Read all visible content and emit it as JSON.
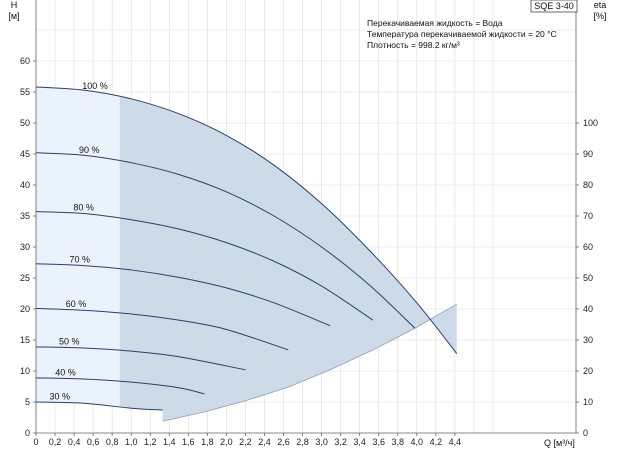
{
  "chart_data": {
    "type": "line",
    "model": "SQE 3-40",
    "info_lines": [
      "Перекачиваемая жидкость = Вода",
      "Температура перекачиваемой жидкости = 20 °C",
      "Плотность = 998.2 кг/м³"
    ],
    "y_left_title": [
      "H",
      "[м]"
    ],
    "y_right_title": [
      "eta",
      "[%]"
    ],
    "x_title": "Q [м³/ч]",
    "xlim": [
      0,
      4.8
    ],
    "ylim": [
      0,
      60
    ],
    "x_ticks": [
      "0",
      "0,2",
      "0,4",
      "0,6",
      "0,8",
      "1,0",
      "1,2",
      "1,4",
      "1,6",
      "1,8",
      "2,0",
      "2,2",
      "2,4",
      "2,6",
      "2,8",
      "3,0",
      "3,2",
      "3,4",
      "3,6",
      "3,8",
      "4,0",
      "4,2",
      "4,4"
    ],
    "y_left_ticks": [
      "0",
      "5",
      "10",
      "15",
      "20",
      "25",
      "30",
      "35",
      "40",
      "45",
      "50",
      "55",
      "60"
    ],
    "y_right_ticks": [
      "0",
      "10",
      "20",
      "30",
      "40",
      "50",
      "60",
      "70",
      "80",
      "90",
      "100"
    ],
    "eta_range": [
      0,
      100
    ],
    "light_region_x_end": 0.88,
    "series": [
      {
        "name": "100 %",
        "x": [
          0,
          0.5,
          1.0,
          1.5,
          2.0,
          2.5,
          3.0,
          3.5,
          4.0,
          4.42
        ],
        "y": [
          55.8,
          55.3,
          53.9,
          51.5,
          48.0,
          43.2,
          37.0,
          29.5,
          21.0,
          12.8
        ]
      },
      {
        "name": "90 %",
        "x": [
          0,
          0.5,
          1.0,
          1.5,
          2.0,
          2.5,
          3.0,
          3.5,
          3.98
        ],
        "y": [
          45.2,
          44.8,
          43.6,
          41.7,
          38.9,
          35.0,
          30.0,
          23.9,
          16.9
        ]
      },
      {
        "name": "80 %",
        "x": [
          0,
          0.5,
          1.0,
          1.5,
          2.0,
          2.5,
          3.0,
          3.54
        ],
        "y": [
          35.7,
          35.4,
          34.4,
          32.9,
          30.7,
          27.7,
          23.7,
          18.2
        ]
      },
      {
        "name": "70 %",
        "x": [
          0,
          0.5,
          1.0,
          1.5,
          2.0,
          2.5,
          3.09
        ],
        "y": [
          27.3,
          27.0,
          26.3,
          25.1,
          23.4,
          21.0,
          17.3
        ]
      },
      {
        "name": "60 %",
        "x": [
          0,
          0.5,
          1.0,
          1.5,
          2.0,
          2.65
        ],
        "y": [
          20.1,
          19.8,
          19.2,
          18.2,
          16.7,
          13.4
        ]
      },
      {
        "name": "50 %",
        "x": [
          0,
          0.5,
          1.0,
          1.5,
          2.2
        ],
        "y": [
          13.9,
          13.7,
          13.2,
          12.3,
          10.2
        ]
      },
      {
        "name": "40 %",
        "x": [
          0,
          0.5,
          1.0,
          1.5,
          1.77
        ],
        "y": [
          8.9,
          8.7,
          8.2,
          7.3,
          6.3
        ]
      },
      {
        "name": "30 %",
        "x": [
          0,
          0.5,
          1.0,
          1.33
        ],
        "y": [
          5.0,
          4.8,
          4.0,
          3.7
        ]
      }
    ],
    "boundary_ends": [
      {
        "x": 4.42,
        "y": 20.8
      },
      {
        "x": 3.98,
        "y": 16.9
      },
      {
        "x": 3.54,
        "y": 13.4
      },
      {
        "x": 3.09,
        "y": 10.2
      },
      {
        "x": 2.65,
        "y": 7.4
      },
      {
        "x": 2.2,
        "y": 5.2
      },
      {
        "x": 1.77,
        "y": 3.4
      },
      {
        "x": 1.33,
        "y": 1.9
      }
    ],
    "colors": {
      "light_fill": "#eaf2fb",
      "dark_fill": "#cddbe8",
      "curve": "#2a3f6e",
      "grid": "#dddddd",
      "axis": "#666666"
    }
  }
}
